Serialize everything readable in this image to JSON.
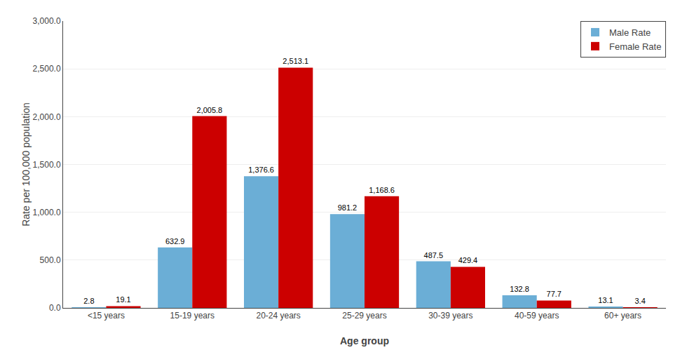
{
  "chart_data": {
    "type": "bar",
    "categories": [
      "<15 years",
      "15-19 years",
      "20-24 years",
      "25-29 years",
      "30-39 years",
      "40-59 years",
      "60+ years"
    ],
    "series": [
      {
        "name": "Male Rate",
        "color": "#6baed6",
        "values": [
          2.8,
          632.9,
          1376.6,
          981.2,
          487.5,
          132.8,
          13.1
        ],
        "value_labels": [
          "2.8",
          "632.9",
          "1,376.6",
          "981.2",
          "487.5",
          "132.8",
          "13.1"
        ]
      },
      {
        "name": "Female Rate",
        "color": "#cc0000",
        "values": [
          19.1,
          2005.8,
          2513.1,
          1168.6,
          429.4,
          77.7,
          3.4
        ],
        "value_labels": [
          "19.1",
          "2,005.8",
          "2,513.1",
          "1,168.6",
          "429.4",
          "77.7",
          "3.4"
        ]
      }
    ],
    "xlabel": "Age group",
    "ylabel": "Rate per 100,000 population",
    "ylim": [
      0,
      3000
    ],
    "yticks": [
      {
        "value": 0,
        "label": "0.0"
      },
      {
        "value": 500,
        "label": "500.0"
      },
      {
        "value": 1000,
        "label": "1,000.0"
      },
      {
        "value": 1500,
        "label": "1,500.0"
      },
      {
        "value": 2000,
        "label": "2,000.0"
      },
      {
        "value": 2500,
        "label": "2,500.0"
      },
      {
        "value": 3000,
        "label": "3,000.0"
      }
    ],
    "grid": true,
    "legend": "upper right",
    "data_labels": true
  }
}
